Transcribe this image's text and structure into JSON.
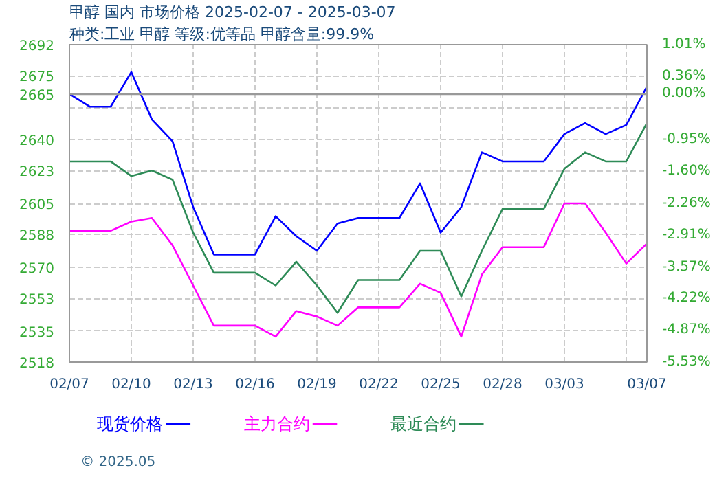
{
  "chart_data": {
    "type": "line",
    "title": "甲醇 国内 市场价格 2025-02-07 - 2025-03-07",
    "subtitle": "种类:工业 甲醇 等级:优等品 甲醇含量:99.9%",
    "annotations": [
      "© 2025.05"
    ],
    "x": [
      "2025-02-07",
      "2025-02-08",
      "2025-02-09",
      "2025-02-10",
      "2025-02-11",
      "2025-02-12",
      "2025-02-13",
      "2025-02-14",
      "2025-02-15",
      "2025-02-16",
      "2025-02-17",
      "2025-02-18",
      "2025-02-19",
      "2025-02-20",
      "2025-02-21",
      "2025-02-22",
      "2025-02-23",
      "2025-02-24",
      "2025-02-25",
      "2025-02-26",
      "2025-02-27",
      "2025-02-28",
      "2025-03-01",
      "2025-03-02",
      "2025-03-03",
      "2025-03-04",
      "2025-03-05",
      "2025-03-06",
      "2025-03-07"
    ],
    "series": [
      {
        "name": "现货价格",
        "color": "#0000ff",
        "values": [
          2665,
          2658,
          2658,
          2677,
          2651,
          2639,
          2603,
          2577,
          2577,
          2577,
          2598,
          2587,
          2579,
          2594,
          2597,
          2597,
          2597,
          2616,
          2589,
          2603,
          2633,
          2628,
          2628,
          2628,
          2643,
          2649,
          2643,
          2648,
          2669
        ]
      },
      {
        "name": "主力合约",
        "color": "#ff00ff",
        "values": [
          2590,
          2590,
          2590,
          2595,
          2597,
          2582,
          2560,
          2538,
          2538,
          2538,
          2532,
          2546,
          2543,
          2538,
          2548,
          2548,
          2548,
          2561,
          2556,
          2532,
          2566,
          2581,
          2581,
          2581,
          2605,
          2605,
          2589,
          2572,
          2583
        ]
      },
      {
        "name": "最近合约",
        "color": "#2e8b57",
        "values": [
          2628,
          2628,
          2628,
          2620,
          2623,
          2618,
          2589,
          2567,
          2567,
          2567,
          2560,
          2573,
          2560,
          2545,
          2563,
          2563,
          2563,
          2579,
          2579,
          2554,
          2579,
          2602,
          2602,
          2602,
          2624,
          2633,
          2628,
          2628,
          2649
        ]
      }
    ],
    "xlim": [
      "2025-02-07",
      "2025-03-07"
    ],
    "xticks": [
      {
        "value": "2025-02-07",
        "label": "02/07"
      },
      {
        "value": "2025-02-10",
        "label": "02/10"
      },
      {
        "value": "2025-02-13",
        "label": "02/13"
      },
      {
        "value": "2025-02-16",
        "label": "02/16"
      },
      {
        "value": "2025-02-19",
        "label": "02/19"
      },
      {
        "value": "2025-02-22",
        "label": "02/22"
      },
      {
        "value": "2025-02-25",
        "label": "02/25"
      },
      {
        "value": "2025-02-28",
        "label": "02/28"
      },
      {
        "value": "2025-03-03",
        "label": "03/03"
      },
      {
        "value": "2025-03-06",
        "label": null
      },
      {
        "value": "2025-03-07",
        "label": "03/07"
      }
    ],
    "ylim": [
      2518,
      2692
    ],
    "yticks": [
      2692,
      2675,
      {
        "value": 2657.5,
        "label": null
      },
      2640,
      2623,
      2605,
      2588,
      2570,
      2553,
      2535,
      2518
    ],
    "y2lim": [
      -5.53,
      1.01
    ],
    "y2ticks": [
      {
        "value": 1.01,
        "label": "1.01%"
      },
      {
        "value": 0.36,
        "label": "0.36%"
      },
      {
        "value": 0,
        "label": "0.00%"
      },
      {
        "value": -0.3,
        "label": null
      },
      {
        "value": -0.95,
        "label": "-0.95%"
      },
      {
        "value": -1.6,
        "label": "-1.60%"
      },
      {
        "value": -2.26,
        "label": "-2.26%"
      },
      {
        "value": -2.91,
        "label": "-2.91%"
      },
      {
        "value": -3.57,
        "label": "-3.57%"
      },
      {
        "value": -4.22,
        "label": "-4.22%"
      },
      {
        "value": -4.87,
        "label": "-4.87%"
      },
      {
        "value": -5.53,
        "label": "-5.53%"
      }
    ],
    "ref_lines": [
      {
        "axis": "y",
        "value": 2665,
        "label": "2665",
        "color": "#999999"
      }
    ],
    "grid": true,
    "legend": "bottom",
    "marker": "none",
    "line_style": "solid"
  }
}
